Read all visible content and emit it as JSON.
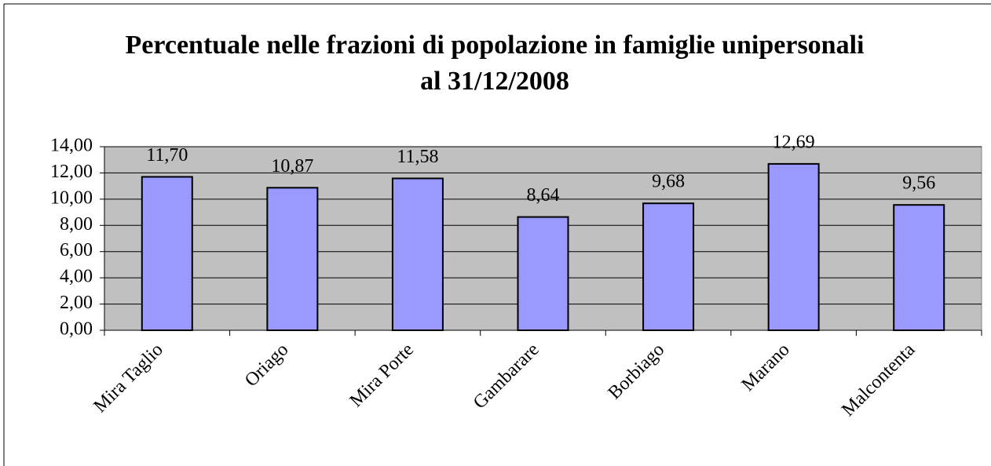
{
  "chart_data": {
    "type": "bar",
    "title": "Percentuale nelle frazioni di popolazione in famiglie unipersonali al 31/12/2008",
    "categories": [
      "Mira Taglio",
      "Oriago",
      "Mira Porte",
      "Gambarare",
      "Borbiago",
      "Marano",
      "Malcontenta"
    ],
    "values": [
      11.7,
      10.87,
      11.58,
      8.64,
      9.68,
      12.69,
      9.56
    ],
    "value_labels": [
      "11,70",
      "10,87",
      "11,58",
      "8,64",
      "9,68",
      "12,69",
      "9,56"
    ],
    "color": "#9999ff",
    "ylim": [
      0,
      14
    ],
    "yticks": [
      {
        "value": 0,
        "label": "0,00"
      },
      {
        "value": 2,
        "label": "2,00"
      },
      {
        "value": 4,
        "label": "4,00"
      },
      {
        "value": 6,
        "label": "6,00"
      },
      {
        "value": 8,
        "label": "8,00"
      },
      {
        "value": 10,
        "label": "10,00"
      },
      {
        "value": 12,
        "label": "12,00"
      },
      {
        "value": 14,
        "label": "14,00"
      }
    ],
    "grid": true
  }
}
